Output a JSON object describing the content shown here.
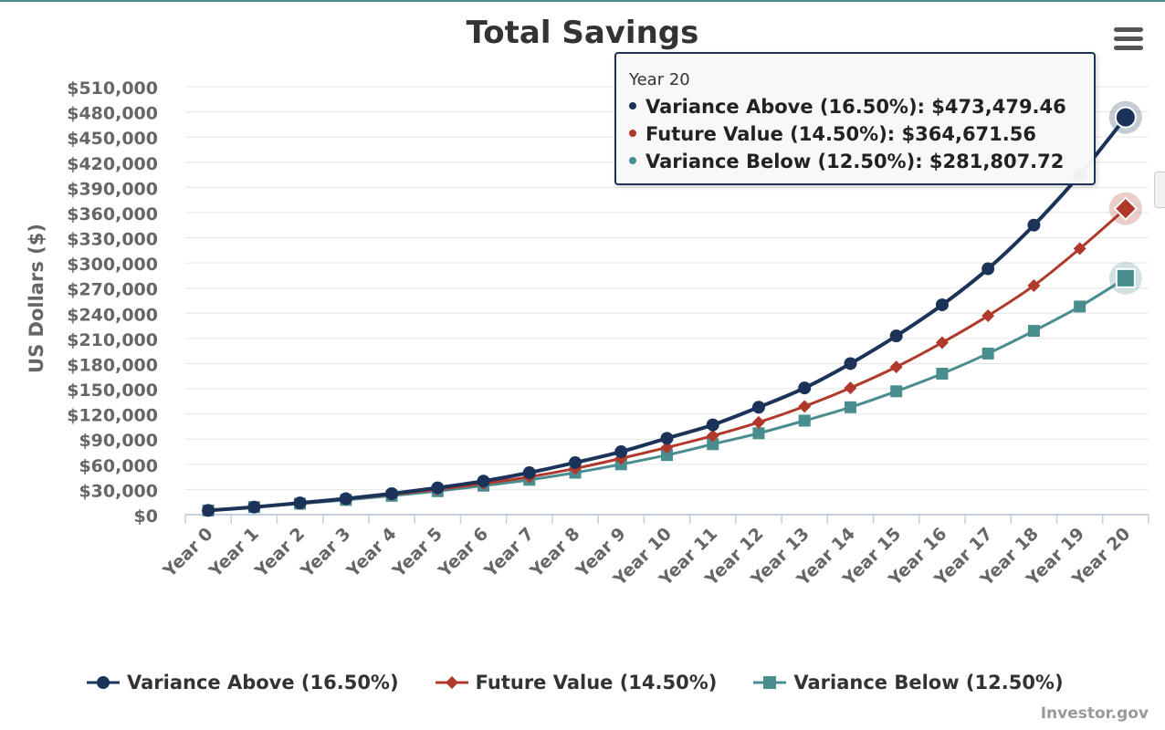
{
  "title": "Total Savings",
  "credit": "Investor.gov",
  "menu_icon": "hamburger-menu-icon",
  "chart_data": {
    "type": "line",
    "title": "Total Savings",
    "xlabel": "",
    "ylabel": "US Dollars ($)",
    "ylim": [
      0,
      510000
    ],
    "ytick_values": [
      0,
      30000,
      60000,
      90000,
      120000,
      150000,
      180000,
      210000,
      240000,
      270000,
      300000,
      330000,
      360000,
      390000,
      420000,
      450000,
      480000,
      510000
    ],
    "ytick_labels": [
      "$0",
      "$30,000",
      "$60,000",
      "$90,000",
      "$120,000",
      "$150,000",
      "$180,000",
      "$210,000",
      "$240,000",
      "$270,000",
      "$300,000",
      "$330,000",
      "$360,000",
      "$390,000",
      "$420,000",
      "$450,000",
      "$480,000",
      "$510,000"
    ],
    "categories": [
      "Year 0",
      "Year 1",
      "Year 2",
      "Year 3",
      "Year 4",
      "Year 5",
      "Year 6",
      "Year 7",
      "Year 8",
      "Year 9",
      "Year 10",
      "Year 11",
      "Year 12",
      "Year 13",
      "Year 14",
      "Year 15",
      "Year 16",
      "Year 17",
      "Year 18",
      "Year 19",
      "Year 20"
    ],
    "grid": true,
    "legend_position": "bottom",
    "series": [
      {
        "name": "Variance Above (16.50%)",
        "color": "#1b3358",
        "marker": "circle",
        "values": [
          5000,
          9000,
          14000,
          19000,
          25000,
          32000,
          40000,
          50000,
          62000,
          75000,
          91000,
          107000,
          128000,
          151000,
          180000,
          213000,
          250000,
          293000,
          345000,
          405000,
          473479.46
        ]
      },
      {
        "name": "Future Value (14.50%)",
        "color": "#b0392b",
        "marker": "diamond",
        "values": [
          5000,
          9000,
          13500,
          18500,
          24000,
          30000,
          37000,
          45000,
          55000,
          67000,
          80000,
          94000,
          110000,
          129000,
          151000,
          176000,
          205000,
          237000,
          273000,
          317000,
          364671.56
        ]
      },
      {
        "name": "Variance Below (12.50%)",
        "color": "#4a8d8f",
        "marker": "square",
        "values": [
          5000,
          9000,
          13000,
          17500,
          22500,
          28000,
          34500,
          41500,
          50000,
          60000,
          71000,
          84000,
          97000,
          112000,
          128000,
          147000,
          168000,
          192000,
          219000,
          248000,
          281807.72
        ]
      }
    ],
    "highlight_index": 20
  },
  "tooltip": {
    "header": "Year 20",
    "rows": [
      {
        "label": "Variance Above (16.50%)",
        "value": "$473,479.46",
        "color": "#1b3358"
      },
      {
        "label": "Future Value (14.50%)",
        "value": "$364,671.56",
        "color": "#b0392b"
      },
      {
        "label": "Variance Below (12.50%)",
        "value": "$281,807.72",
        "color": "#4a8d8f"
      }
    ]
  },
  "legend": {
    "items": [
      {
        "label": "Variance Above (16.50%)"
      },
      {
        "label": "Future Value (14.50%)"
      },
      {
        "label": "Variance Below (12.50%)"
      }
    ]
  }
}
